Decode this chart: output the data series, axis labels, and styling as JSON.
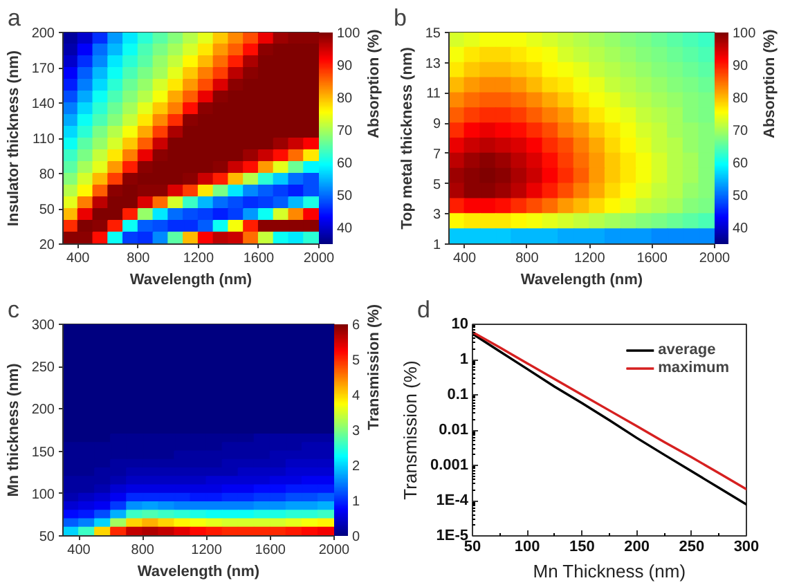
{
  "chart_data": [
    {
      "type": "heatmap",
      "title": "a",
      "xlabel": "Wavelength (nm)",
      "ylabel": "Insulator thickness (nm)",
      "clabel": "Absorption (%)",
      "x": [
        350,
        450,
        550,
        650,
        750,
        850,
        950,
        1050,
        1150,
        1250,
        1350,
        1450,
        1550,
        1650,
        1750,
        1850,
        1950
      ],
      "cells": [
        [
          37,
          40,
          46,
          53,
          58,
          62,
          65,
          68,
          71,
          74,
          79,
          83,
          87,
          93,
          98,
          99,
          99
        ],
        [
          38,
          43,
          50,
          55,
          60,
          64,
          67,
          70,
          73,
          77,
          82,
          86,
          91,
          99,
          100,
          100,
          100
        ],
        [
          40,
          46,
          52,
          58,
          62,
          65,
          69,
          72,
          76,
          80,
          85,
          90,
          97,
          100,
          100,
          100,
          100
        ],
        [
          43,
          49,
          55,
          60,
          64,
          67,
          70,
          74,
          79,
          84,
          88,
          96,
          99,
          100,
          100,
          100,
          100
        ],
        [
          45,
          51,
          57,
          62,
          66,
          69,
          73,
          77,
          82,
          87,
          94,
          99,
          100,
          100,
          100,
          100,
          100
        ],
        [
          48,
          54,
          60,
          64,
          68,
          71,
          75,
          81,
          86,
          93,
          99,
          100,
          100,
          100,
          100,
          100,
          100
        ],
        [
          51,
          57,
          62,
          66,
          70,
          74,
          79,
          84,
          91,
          99,
          100,
          100,
          100,
          100,
          100,
          100,
          100
        ],
        [
          54,
          60,
          64,
          68,
          72,
          77,
          83,
          89,
          99,
          100,
          100,
          100,
          100,
          100,
          100,
          100,
          100
        ],
        [
          57,
          62,
          67,
          71,
          75,
          81,
          88,
          97,
          100,
          100,
          100,
          100,
          100,
          100,
          100,
          100,
          100
        ],
        [
          60,
          65,
          69,
          73,
          79,
          86,
          95,
          100,
          100,
          100,
          100,
          100,
          100,
          100,
          98,
          95,
          92
        ],
        [
          63,
          67,
          72,
          77,
          84,
          93,
          99,
          100,
          100,
          100,
          100,
          100,
          98,
          95,
          91,
          85,
          77
        ],
        [
          65,
          70,
          74,
          82,
          90,
          99,
          100,
          100,
          100,
          100,
          99,
          95,
          91,
          82,
          74,
          66,
          59
        ],
        [
          68,
          73,
          80,
          88,
          99,
          100,
          100,
          100,
          99,
          95,
          90,
          80,
          71,
          62,
          56,
          50,
          48
        ],
        [
          71,
          76,
          86,
          99,
          100,
          99,
          99,
          94,
          88,
          77,
          67,
          58,
          52,
          49,
          47,
          45,
          48
        ],
        [
          74,
          84,
          96,
          100,
          100,
          94,
          85,
          73,
          63,
          55,
          50,
          48,
          46,
          47,
          49,
          55,
          61
        ],
        [
          80,
          93,
          100,
          100,
          90,
          69,
          58,
          50,
          48,
          47,
          45,
          47,
          53,
          60,
          73,
          83,
          92
        ],
        [
          89,
          100,
          99,
          90,
          60,
          49,
          48,
          46,
          46,
          49,
          60,
          75,
          90,
          99,
          99,
          99,
          99
        ],
        [
          99,
          99,
          91,
          60,
          47,
          46,
          52,
          65,
          80,
          92,
          96,
          95,
          85,
          72,
          60,
          58,
          62
        ]
      ],
      "xlim": [
        300,
        2000
      ],
      "ylim": [
        20,
        200
      ],
      "xticks": [
        400,
        800,
        1200,
        1600,
        2000
      ],
      "yticks": [
        20,
        50,
        80,
        110,
        140,
        170,
        200
      ],
      "clim": [
        35,
        100
      ],
      "cticks": [
        40,
        50,
        60,
        70,
        80,
        90,
        100
      ]
    },
    {
      "type": "heatmap",
      "title": "b",
      "xlabel": "Wavelength (nm)",
      "ylabel": "Top metal thickness (nm)",
      "clabel": "Absorption (%)",
      "x": [
        350,
        450,
        550,
        650,
        750,
        850,
        950,
        1050,
        1150,
        1250,
        1350,
        1450,
        1550,
        1650,
        1750,
        1850,
        1950
      ],
      "cells": [
        [
          73,
          74,
          75,
          75,
          75,
          74,
          73,
          72,
          71,
          70,
          69,
          68,
          67,
          66,
          65,
          64,
          63
        ],
        [
          75,
          77,
          78,
          78,
          77,
          76,
          75,
          73,
          72,
          71,
          70,
          69,
          68,
          67,
          66,
          65,
          64
        ],
        [
          77,
          79,
          80,
          80,
          79,
          78,
          76,
          75,
          74,
          72,
          71,
          70,
          69,
          68,
          67,
          66,
          65
        ],
        [
          80,
          82,
          83,
          83,
          82,
          80,
          78,
          77,
          75,
          74,
          72,
          71,
          70,
          69,
          68,
          67,
          66
        ],
        [
          83,
          85,
          86,
          86,
          85,
          83,
          81,
          79,
          77,
          75,
          74,
          72,
          71,
          70,
          69,
          68,
          67
        ],
        [
          86,
          88,
          89,
          89,
          88,
          86,
          84,
          82,
          79,
          77,
          75,
          74,
          72,
          71,
          70,
          68,
          67
        ],
        [
          89,
          92,
          93,
          92,
          91,
          89,
          87,
          84,
          82,
          79,
          77,
          75,
          73,
          72,
          70,
          69,
          68
        ],
        [
          93,
          95,
          96,
          95,
          94,
          92,
          89,
          87,
          84,
          81,
          78,
          76,
          74,
          72,
          71,
          69,
          68
        ],
        [
          96,
          98,
          99,
          98,
          96,
          94,
          91,
          88,
          85,
          82,
          79,
          77,
          75,
          73,
          71,
          70,
          68
        ],
        [
          98,
          99,
          100,
          99,
          97,
          95,
          92,
          89,
          86,
          82,
          79,
          77,
          75,
          73,
          71,
          70,
          68
        ],
        [
          97,
          99,
          99,
          98,
          96,
          93,
          90,
          87,
          84,
          81,
          78,
          76,
          74,
          72,
          71,
          69,
          68
        ],
        [
          90,
          92,
          92,
          91,
          89,
          87,
          85,
          82,
          80,
          78,
          76,
          74,
          72,
          71,
          70,
          68,
          67
        ],
        [
          76,
          77,
          77,
          77,
          76,
          75,
          74,
          73,
          72,
          71,
          70,
          69,
          68,
          67,
          66,
          65,
          64
        ],
        [
          56,
          56,
          56,
          56,
          55,
          55,
          55,
          54,
          54,
          54,
          53,
          53,
          53,
          52,
          52,
          52,
          52
        ]
      ],
      "xlim": [
        300,
        2000
      ],
      "ylim": [
        1,
        15
      ],
      "xticks": [
        400,
        800,
        1200,
        1600,
        2000
      ],
      "yticks": [
        1,
        3,
        5,
        7,
        9,
        11,
        13,
        15
      ],
      "clim": [
        35,
        100
      ],
      "cticks": [
        40,
        50,
        60,
        70,
        80,
        90,
        100
      ]
    },
    {
      "type": "heatmap",
      "title": "c",
      "xlabel": "Wavelength (nm)",
      "ylabel": "Mn thickness (nm)",
      "clabel": "Transmission (%)",
      "x": [
        350,
        450,
        550,
        650,
        750,
        850,
        950,
        1050,
        1150,
        1250,
        1350,
        1450,
        1550,
        1650,
        1750,
        1850,
        1950
      ],
      "cells": [
        [
          0,
          0,
          0,
          0,
          0,
          0,
          0,
          0,
          0,
          0,
          0,
          0,
          0,
          0,
          0,
          0,
          0
        ],
        [
          0,
          0,
          0,
          0,
          0,
          0,
          0,
          0,
          0,
          0,
          0,
          0,
          0,
          0,
          0,
          0,
          0
        ],
        [
          0,
          0,
          0,
          0,
          0,
          0,
          0,
          0,
          0,
          0,
          0,
          0,
          0,
          0,
          0,
          0,
          0
        ],
        [
          0,
          0,
          0,
          0,
          0,
          0,
          0,
          0,
          0,
          0,
          0,
          0,
          0,
          0,
          0,
          0,
          0
        ],
        [
          0,
          0,
          0,
          0,
          0,
          0,
          0,
          0,
          0,
          0,
          0,
          0,
          0,
          0,
          0,
          0,
          0
        ],
        [
          0,
          0,
          0,
          0,
          0,
          0,
          0,
          0,
          0,
          0,
          0,
          0,
          0,
          0,
          0,
          0,
          0
        ],
        [
          0,
          0,
          0,
          0,
          0,
          0,
          0,
          0,
          0,
          0,
          0,
          0,
          0,
          0,
          0,
          0,
          0
        ],
        [
          0,
          0,
          0,
          0,
          0,
          0,
          0,
          0,
          0,
          0,
          0,
          0,
          0,
          0,
          0,
          0,
          0
        ],
        [
          0,
          0,
          0,
          0,
          0,
          0,
          0,
          0,
          0,
          0,
          0,
          0,
          0,
          0,
          0,
          0,
          0
        ],
        [
          0,
          0,
          0,
          0,
          0,
          0,
          0,
          0,
          0,
          0,
          0,
          0,
          0,
          0,
          0,
          0,
          0
        ],
        [
          0,
          0,
          0,
          0,
          0,
          0,
          0,
          0,
          0,
          0,
          0,
          0,
          0,
          0,
          0,
          0,
          0
        ],
        [
          0,
          0,
          0,
          0,
          0,
          0,
          0,
          0,
          0,
          0,
          0,
          0,
          0,
          0,
          0,
          0,
          0
        ],
        [
          0,
          0,
          0,
          0,
          0,
          0,
          0,
          0,
          0,
          0,
          0,
          0,
          0,
          0,
          0,
          0,
          0
        ],
        [
          0,
          0,
          0,
          0.1,
          0.1,
          0.1,
          0.1,
          0.1,
          0.1,
          0.1,
          0.1,
          0.1,
          0.2,
          0.2,
          0.2,
          0.2,
          0.2
        ],
        [
          0.1,
          0.1,
          0.1,
          0.1,
          0.1,
          0.1,
          0.1,
          0.1,
          0.1,
          0.1,
          0.2,
          0.2,
          0.2,
          0.2,
          0.2,
          0.3,
          0.3
        ],
        [
          0.1,
          0.1,
          0.1,
          0.1,
          0.1,
          0.1,
          0.1,
          0.2,
          0.2,
          0.2,
          0.2,
          0.2,
          0.2,
          0.3,
          0.3,
          0.3,
          0.3
        ],
        [
          0.1,
          0.1,
          0.1,
          0.2,
          0.2,
          0.2,
          0.2,
          0.2,
          0.2,
          0.2,
          0.3,
          0.3,
          0.3,
          0.3,
          0.4,
          0.4,
          0.4
        ],
        [
          0.1,
          0.1,
          0.2,
          0.2,
          0.3,
          0.3,
          0.3,
          0.3,
          0.3,
          0.3,
          0.3,
          0.4,
          0.4,
          0.4,
          0.5,
          0.5,
          0.5
        ],
        [
          0.2,
          0.2,
          0.2,
          0.3,
          0.4,
          0.4,
          0.4,
          0.4,
          0.4,
          0.5,
          0.5,
          0.5,
          0.5,
          0.6,
          0.6,
          0.7,
          0.7
        ],
        [
          0.2,
          0.2,
          0.3,
          0.5,
          0.6,
          0.6,
          0.6,
          0.6,
          0.6,
          0.6,
          0.7,
          0.7,
          0.8,
          0.8,
          0.9,
          0.9,
          0.9
        ],
        [
          0.3,
          0.4,
          0.5,
          0.7,
          1.0,
          1.0,
          1.0,
          1.0,
          0.9,
          0.9,
          1.0,
          1.0,
          1.1,
          1.1,
          1.2,
          1.2,
          1.3
        ],
        [
          0.5,
          0.6,
          0.7,
          1.1,
          1.6,
          1.7,
          1.6,
          1.5,
          1.5,
          1.5,
          1.5,
          1.5,
          1.6,
          1.6,
          1.7,
          1.7,
          1.8
        ],
        [
          0.8,
          0.9,
          1.2,
          1.8,
          2.6,
          2.7,
          2.6,
          2.5,
          2.4,
          2.3,
          2.3,
          2.3,
          2.4,
          2.4,
          2.5,
          2.5,
          2.6
        ],
        [
          1.3,
          1.5,
          2.0,
          3.2,
          4.0,
          4.2,
          4.0,
          3.8,
          3.7,
          3.6,
          3.5,
          3.5,
          3.5,
          3.5,
          3.6,
          3.7,
          3.8
        ],
        [
          2.0,
          2.6,
          4.0,
          5.0,
          5.6,
          5.7,
          5.6,
          5.4,
          5.2,
          5.1,
          5.0,
          5.0,
          5.0,
          5.0,
          5.1,
          5.2,
          5.3
        ]
      ],
      "xlim": [
        300,
        2000
      ],
      "ylim": [
        50,
        300
      ],
      "xticks": [
        400,
        800,
        1200,
        1600,
        2000
      ],
      "yticks": [
        50,
        100,
        150,
        200,
        250,
        300
      ],
      "clim": [
        0,
        6
      ],
      "cticks": [
        0,
        1,
        2,
        3,
        4,
        5,
        6
      ]
    },
    {
      "type": "line",
      "title": "d",
      "xlabel": "Mn Thickness (nm)",
      "ylabel": "Transmission (%)",
      "x": [
        50,
        75,
        100,
        125,
        150,
        175,
        200,
        225,
        250,
        275,
        300
      ],
      "series": [
        {
          "name": "average",
          "color": "#000000",
          "values": [
            5.4,
            1.7,
            0.54,
            0.17,
            0.058,
            0.019,
            0.006,
            0.002,
            0.00068,
            0.00023,
            7.8e-05
          ]
        },
        {
          "name": "maximum",
          "color": "#d62020",
          "values": [
            6.0,
            2.2,
            0.78,
            0.28,
            0.1,
            0.036,
            0.013,
            0.0046,
            0.0017,
            0.0006,
            0.00021
          ]
        }
      ],
      "xlim": [
        50,
        300
      ],
      "ylim": [
        1e-05,
        10
      ],
      "xticks": [
        50,
        100,
        150,
        200,
        250,
        300
      ],
      "yticks": [
        10,
        1,
        0.1,
        0.01,
        0.001,
        {
          "value": 0.0001,
          "label": "1E-4"
        },
        {
          "value": 1e-05,
          "label": "1E-5"
        }
      ],
      "log": "y",
      "legend": "top right"
    }
  ]
}
